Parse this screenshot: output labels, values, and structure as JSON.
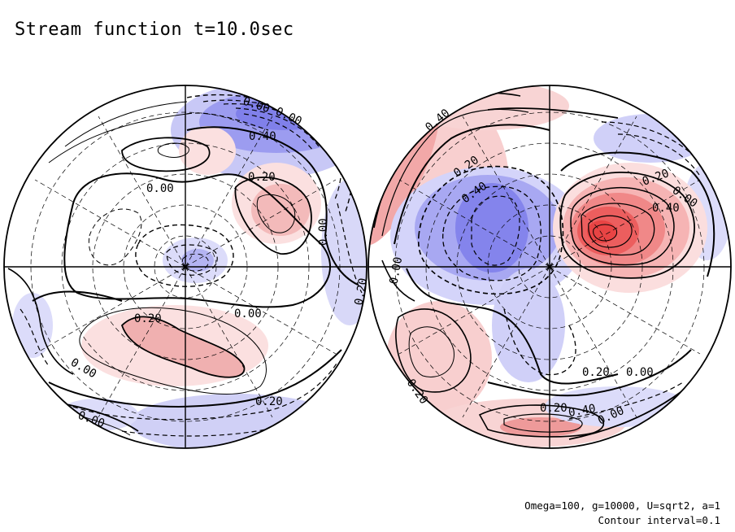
{
  "title": "Stream function t=10.0sec",
  "footnote_line1": "Omega=100, g=10000, U=sqrt2, a=1",
  "footnote_line2": "Contour interval=0.1",
  "colors": {
    "negative_fill": "#7777ee",
    "positive_fill": "#ee5555",
    "frame": "#000000"
  },
  "hemispheres": [
    {
      "name": "left-hemisphere",
      "contour_labels": [
        "0.00",
        "0.00",
        "0.40",
        "0.20",
        "0.00",
        "0.00",
        "0.20",
        "0.20",
        "0.00",
        "0.00",
        "0.20",
        "0.00"
      ]
    },
    {
      "name": "right-hemisphere",
      "contour_labels": [
        "0.40",
        "0.20",
        "0.40",
        "0.20",
        "0.00",
        "0.40",
        "0.00",
        "0.20",
        "0.00",
        "0.20",
        "0.40",
        "0.00",
        "0.20"
      ]
    }
  ]
}
